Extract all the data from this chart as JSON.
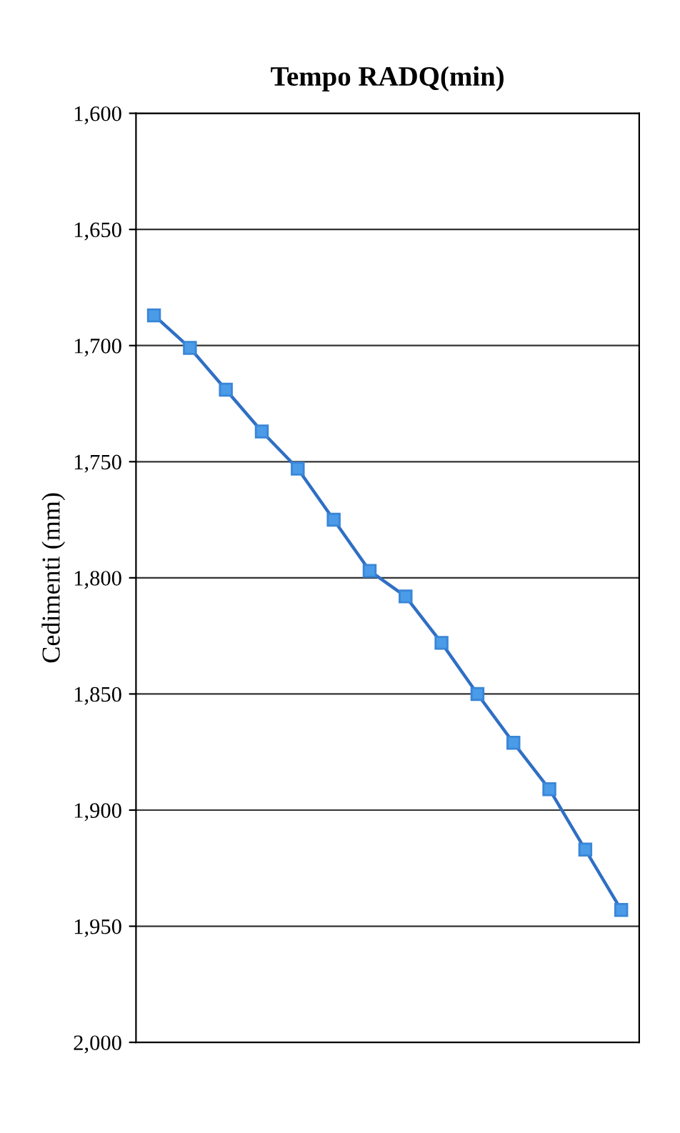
{
  "chart_data": {
    "type": "line",
    "title": "Tempo RADQ(min)",
    "ylabel": "Cedimenti (mm)",
    "categories": [
      null,
      null,
      null,
      null,
      null,
      null,
      null,
      null,
      null,
      null,
      null,
      null,
      null,
      null
    ],
    "series": [
      {
        "color": "#2f6fc4",
        "values": [
          1687,
          1701,
          1719,
          1737,
          1753,
          1775,
          1797,
          1808,
          1828,
          1850,
          1871,
          1891,
          1917,
          1943
        ]
      }
    ],
    "ylim": [
      2000,
      1600
    ],
    "yticks": [
      {
        "value": 1600,
        "label": "1,600"
      },
      {
        "value": 1650,
        "label": "1,650"
      },
      {
        "value": 1700,
        "label": "1,700"
      },
      {
        "value": 1750,
        "label": "1,750"
      },
      {
        "value": 1800,
        "label": "1,800"
      },
      {
        "value": 1850,
        "label": "1,850"
      },
      {
        "value": 1900,
        "label": "1,900"
      },
      {
        "value": 1950,
        "label": "1,950"
      },
      {
        "value": 2000,
        "label": "2,000"
      }
    ],
    "tick_labels": "y",
    "grid": true,
    "marker": "square",
    "line_style": "solid",
    "legend": false
  }
}
